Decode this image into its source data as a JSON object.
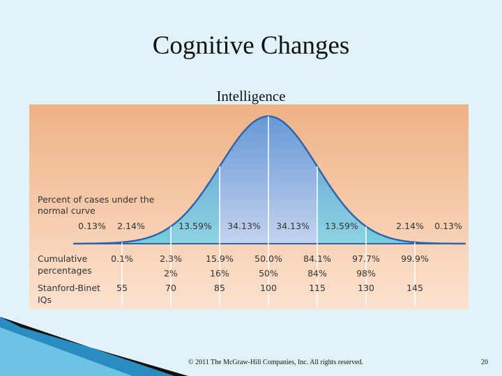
{
  "title": "Cognitive Changes",
  "subtitle": "Intelligence",
  "figure": {
    "curve_label": [
      "Percent of cases under the",
      "normal curve"
    ],
    "percents": [
      "0.13%",
      "2.14%",
      "13.59%",
      "34.13%",
      "34.13%",
      "13.59%",
      "2.14%",
      "0.13%"
    ],
    "cumulative_label": [
      "Cumulative",
      "percentages"
    ],
    "cumulative": [
      "0.1%",
      "2.3%",
      "15.9%",
      "50.0%",
      "84.1%",
      "97.7%",
      "99.9%"
    ],
    "rounded": [
      "2%",
      "16%",
      "50%",
      "84%",
      "98%"
    ],
    "iq_label": [
      "Stanford-Binet",
      "IQs"
    ],
    "iqs": [
      "55",
      "70",
      "85",
      "100",
      "115",
      "130",
      "145"
    ]
  },
  "footer": {
    "copyright": "© 2011 The McGraw-Hill Companies, Inc. All rights reserved.",
    "page": "20"
  }
}
